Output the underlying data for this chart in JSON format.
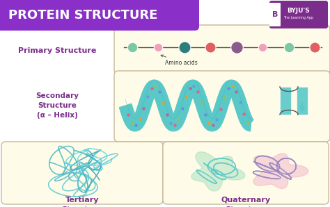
{
  "title": "PROTEIN STRUCTURE",
  "title_bg": "#8B2FC9",
  "title_color": "#FFFFFF",
  "bg_color": "#FFFFFF",
  "panel_bg": "#FEFCE8",
  "panel_border": "#C8B89A",
  "primary_label": "Primary Structure",
  "secondary_label": "Secondary\nStructure\n(α – Helix)",
  "tertiary_label": "Tertiary\nStructure",
  "quaternary_label": "Quaternary\nStructure",
  "amino_label": "Amino acids",
  "bead_colors": [
    "#7DC8A0",
    "#F0A0B8",
    "#2D7D7D",
    "#E06060",
    "#8B5C8B",
    "#F0A0B8",
    "#7DC8A0",
    "#E06060"
  ],
  "bead_sizes": [
    110,
    80,
    150,
    120,
    160,
    80,
    110,
    120
  ],
  "helix_color": "#5BC8C8",
  "helix_dot_colors": [
    "#E06090",
    "#90C060",
    "#6090E0",
    "#E0A030",
    "#C060A0",
    "#60A0E0"
  ],
  "sheet_color": "#5BC8C8",
  "tertiary_line_color": "#5BC8C8",
  "quaternary_color1": "#90D8B0",
  "quaternary_color2": "#F0A0C0",
  "quaternary_line1": "#5BC8C8",
  "quaternary_line2": "#9080C0",
  "label_color": "#7B2D8B",
  "font_size_title": 13,
  "font_size_label": 8,
  "byju_text": "BYJU'S",
  "byju_subtext": "The Learning App",
  "byju_color": "#7B2D8B"
}
